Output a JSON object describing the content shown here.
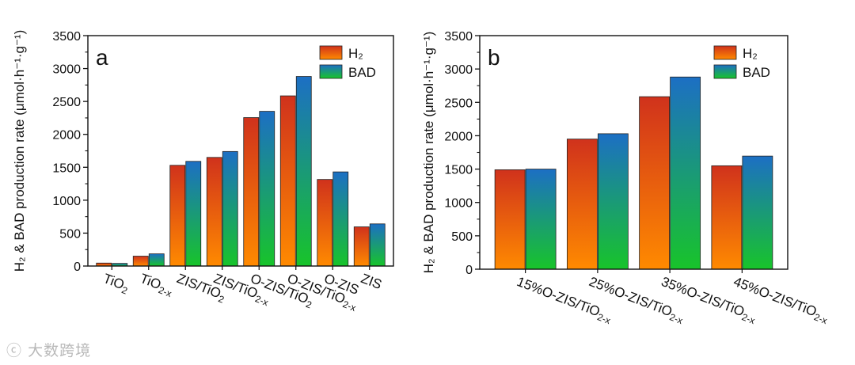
{
  "colors": {
    "h2_top": "#d0321c",
    "h2_bottom": "#ff8a00",
    "bad_top": "#1c6fc4",
    "bad_bottom": "#18c42a",
    "axis": "#111111"
  },
  "watermark": {
    "icon": "chat-bubble-icon",
    "text": "大数跨境"
  },
  "chart_data": [
    {
      "type": "bar",
      "panel_label": "a",
      "ylabel": "H₂ & BAD production rate (μmol·h⁻¹·g⁻¹)",
      "ylim": [
        0,
        3500
      ],
      "yticks": [
        0,
        500,
        1000,
        1500,
        2000,
        2500,
        3000,
        3500
      ],
      "legend_position": "top-right",
      "categories": [
        {
          "base": "TiO",
          "sub": "2"
        },
        {
          "base": "TiO",
          "sub": "2-x"
        },
        {
          "base": "ZIS/TiO",
          "sub": "2"
        },
        {
          "base": "ZIS/TiO",
          "sub": "2-x"
        },
        {
          "base": "O-ZIS/TiO",
          "sub": "2"
        },
        {
          "base": "O-ZIS/TiO",
          "sub": "2-x"
        },
        {
          "base": "O-ZIS",
          "sub": ""
        },
        {
          "base": "ZIS",
          "sub": ""
        }
      ],
      "series": [
        {
          "name": "H₂",
          "values": [
            45,
            150,
            1530,
            1650,
            2255,
            2585,
            1315,
            595
          ]
        },
        {
          "name": "BAD",
          "values": [
            40,
            185,
            1590,
            1740,
            2350,
            2880,
            1430,
            640
          ]
        }
      ]
    },
    {
      "type": "bar",
      "panel_label": "b",
      "ylabel": "H₂ & BAD production rate (μmol·h⁻¹·g⁻¹)",
      "ylim": [
        0,
        3500
      ],
      "yticks": [
        0,
        500,
        1000,
        1500,
        2000,
        2500,
        3000,
        3500
      ],
      "legend_position": "top-right",
      "categories": [
        {
          "base": "15%O-ZIS/TiO",
          "sub": "2-x"
        },
        {
          "base": "25%O-ZIS/TiO",
          "sub": "2-x"
        },
        {
          "base": "35%O-ZIS/TiO",
          "sub": "2-x"
        },
        {
          "base": "45%O-ZIS/TiO",
          "sub": "2-x"
        }
      ],
      "series": [
        {
          "name": "H₂",
          "values": [
            1490,
            1950,
            2585,
            1550
          ]
        },
        {
          "name": "BAD",
          "values": [
            1500,
            2030,
            2880,
            1695
          ]
        }
      ]
    }
  ]
}
